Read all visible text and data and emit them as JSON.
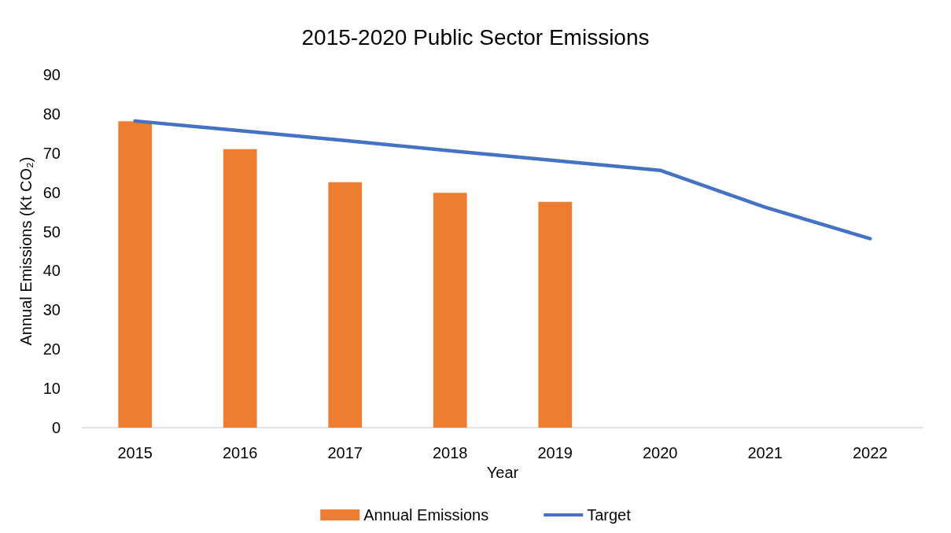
{
  "chart_data": {
    "type": "bar",
    "title": "2015-2020 Public Sector Emissions",
    "xlabel": "Year",
    "ylabel": "Annual Emissions (Kt CO₂)",
    "categories": [
      "2015",
      "2016",
      "2017",
      "2018",
      "2019",
      "2020",
      "2021",
      "2022"
    ],
    "series": [
      {
        "name": "Annual Emissions",
        "color": "#ed7d31",
        "values": [
          78.1,
          71,
          62.6,
          59.9,
          57.6,
          null,
          null,
          null
        ]
      },
      {
        "name": "Target",
        "type": "line",
        "color": "#4472c4",
        "values": [
          78.2,
          75.7,
          73.2,
          70.6,
          68.1,
          65.6,
          56.2,
          48.2
        ]
      }
    ],
    "ylim": [
      0,
      90
    ],
    "yticks": [
      0,
      10,
      20,
      30,
      40,
      50,
      60,
      70,
      80,
      90
    ],
    "grid": false,
    "legend": "bottom",
    "marker": "none",
    "line_style": "solid"
  }
}
